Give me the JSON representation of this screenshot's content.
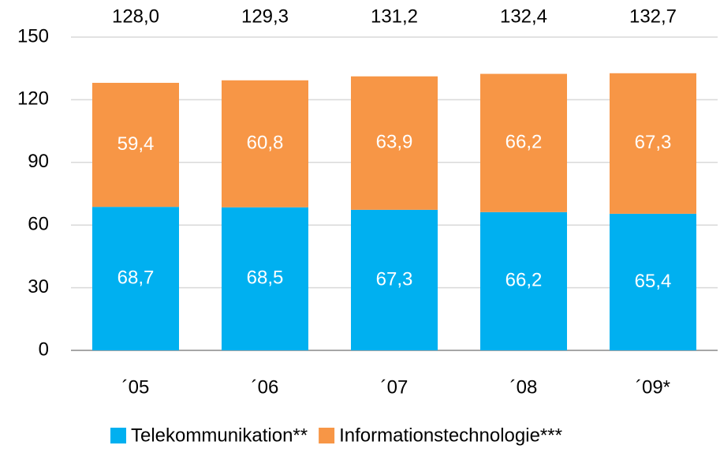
{
  "chart_data": {
    "type": "stacked_bar",
    "categories": [
      "´05",
      "´06",
      "´07",
      "´08",
      "´09*"
    ],
    "series": [
      {
        "name": "Telekommunikation**",
        "color": "#00b0f0",
        "values": [
          68.7,
          68.5,
          67.3,
          66.2,
          65.4
        ],
        "value_labels": [
          "68,7",
          "68,5",
          "67,3",
          "66,2",
          "65,4"
        ]
      },
      {
        "name": "Informationstechnologie***",
        "color": "#f79646",
        "values": [
          59.4,
          60.8,
          63.9,
          66.2,
          67.3
        ],
        "value_labels": [
          "59,4",
          "60,8",
          "63,9",
          "66,2",
          "67,3"
        ]
      }
    ],
    "totals": [
      128.0,
      129.3,
      131.2,
      132.4,
      132.7
    ],
    "total_labels": [
      "128,0",
      "129,3",
      "131,2",
      "132,4",
      "132,7"
    ],
    "ylim": [
      0,
      150
    ],
    "yticks": [
      0,
      30,
      60,
      90,
      120,
      150
    ],
    "grid": true,
    "legend": "bottom"
  }
}
